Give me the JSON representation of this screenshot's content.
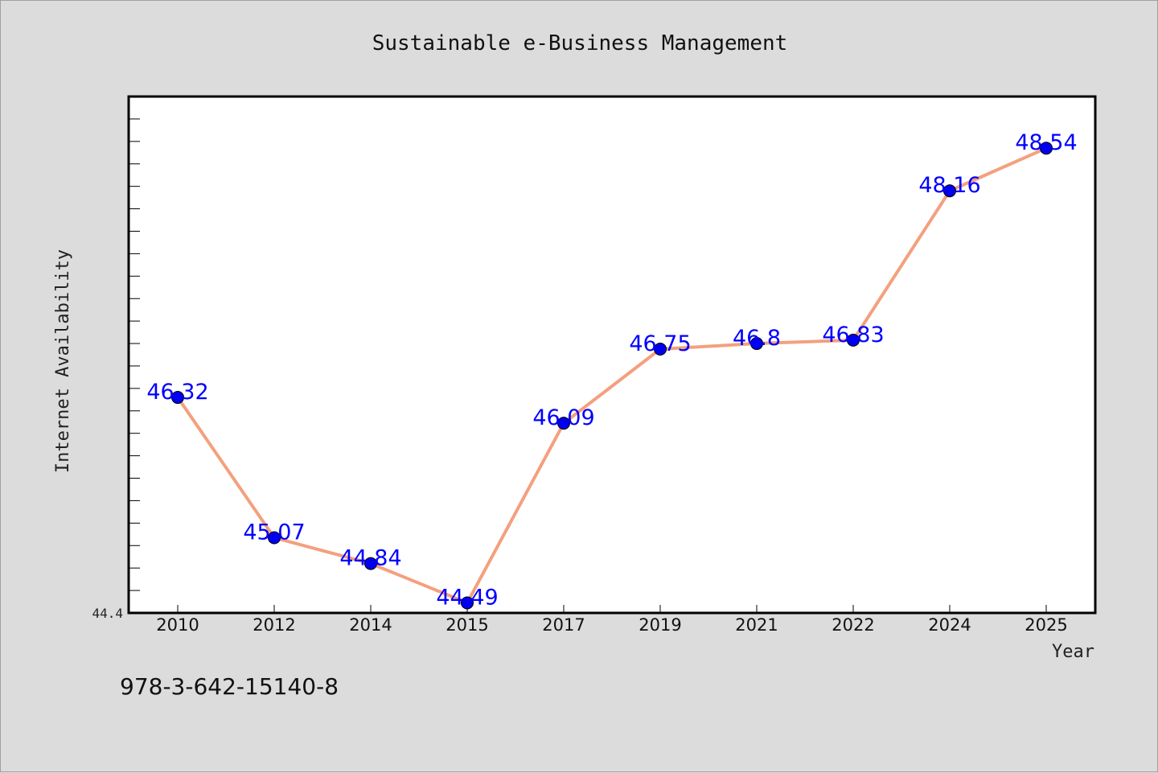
{
  "chart_data": {
    "type": "line",
    "title": "Sustainable e-Business Management",
    "xlabel": "Year",
    "ylabel": "Internet Availability",
    "categories": [
      "2010",
      "2012",
      "2014",
      "2015",
      "2017",
      "2019",
      "2021",
      "2022",
      "2024",
      "2025"
    ],
    "series": [
      {
        "values": [
          46.32,
          45.07,
          44.84,
          44.49,
          46.09,
          46.75,
          46.8,
          46.83,
          48.16,
          48.54
        ],
        "labels": [
          "46.32",
          "45.07",
          "44.84",
          "44.49",
          "46.09",
          "46.75",
          "46.8",
          "46.83",
          "48.16",
          "48.54"
        ]
      }
    ],
    "ylim": [
      44.4,
      49.0
    ],
    "y_min_label": "44.4",
    "grid": false,
    "legend": "none",
    "colors": {
      "line": "#f4a07e",
      "marker": "#0000ee",
      "label": "#0000ff",
      "plot_bg": "#ffffff",
      "page_bg": "#dcdcdc"
    }
  },
  "footer": {
    "isbn": "978-3-642-15140-8"
  }
}
